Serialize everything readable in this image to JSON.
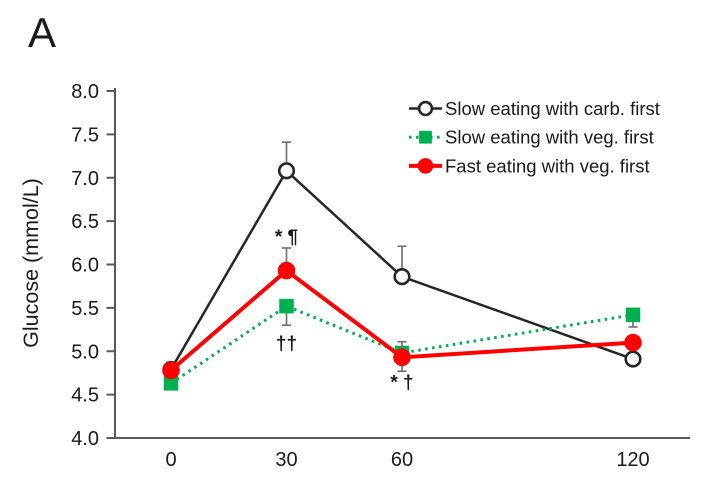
{
  "panel_label": "A",
  "colors": {
    "axis": "#595959",
    "text": "#1a1a1a",
    "error_bar": "#737373",
    "background": "#ffffff"
  },
  "chart_data": {
    "type": "line",
    "title": "",
    "xlabel": "",
    "ylabel": "Glucose (mmol/L)",
    "x": [
      0,
      30,
      60,
      120
    ],
    "x_tick_labels": [
      "0",
      "30",
      "60",
      "120"
    ],
    "y_ticks": [
      8.0,
      7.5,
      7.0,
      6.5,
      6.0,
      5.5,
      5.0,
      4.5,
      4.0
    ],
    "y_tick_labels": [
      "8.0",
      "7.5",
      "7.0",
      "6.5",
      "6.0",
      "5.5",
      "5.0",
      "4.5",
      "4.0"
    ],
    "ylim": [
      4.0,
      8.0
    ],
    "grid": false,
    "legend_position": "top-right",
    "series": [
      {
        "name": "Slow eating with carb. first",
        "color": "#262626",
        "line_style": "solid",
        "marker": "open-circle",
        "values": [
          4.79,
          7.08,
          5.86,
          4.91
        ],
        "err_up": [
          0,
          0.33,
          0.35,
          0
        ],
        "err_down": [
          0,
          0,
          0,
          0
        ]
      },
      {
        "name": "Slow eating with veg. first",
        "color": "#00B050",
        "line_style": "dotted",
        "marker": "filled-square",
        "values": [
          4.63,
          5.52,
          4.98,
          5.42
        ],
        "err_up": [
          0,
          0,
          0,
          0
        ],
        "err_down": [
          0,
          0.22,
          0,
          0.14
        ]
      },
      {
        "name": "Fast eating with veg. first",
        "color": "#FF0000",
        "line_style": "solid",
        "marker": "filled-circle",
        "values": [
          4.78,
          5.93,
          4.93,
          5.1
        ],
        "err_up": [
          0,
          0.26,
          0.18,
          0
        ],
        "err_down": [
          0,
          0,
          0.16,
          0
        ]
      }
    ],
    "annotations": [
      {
        "text": "* ¶",
        "x": 30,
        "y": 6.33
      },
      {
        "text": "††",
        "x": 30,
        "y": 5.1
      },
      {
        "text": "* †",
        "x": 60,
        "y": 4.65
      }
    ]
  }
}
